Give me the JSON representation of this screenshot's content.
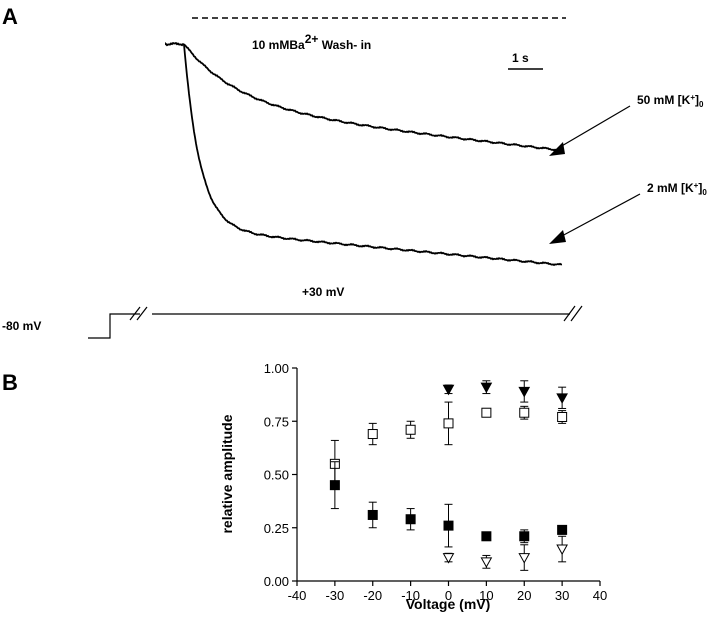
{
  "panel_a": {
    "letter": "A",
    "annotation": "10 mMBa",
    "annotation_sup": "2+",
    "annotation_rest": " Wash- in",
    "scale_bar_label": "1 s",
    "trace_50_label": "50 mM [K",
    "trace_50_sup": "+",
    "trace_50_end": "]",
    "trace_50_sub": "0",
    "trace_2_label": "2 mM [K",
    "trace_2_sup": "+",
    "trace_2_end": "]",
    "trace_2_sub": "0",
    "protocol_hold": "-80 mV",
    "protocol_step": "+30 mV"
  },
  "panel_b": {
    "letter": "B"
  },
  "chart_data": {
    "type": "scatter",
    "title": "",
    "xlabel": "Voltage (mV)",
    "ylabel": "relative amplitude",
    "xlim": [
      -40,
      40
    ],
    "ylim": [
      0,
      1
    ],
    "xticks": [
      -40,
      -30,
      -20,
      -10,
      0,
      10,
      20,
      30,
      40
    ],
    "yticks": [
      "0.00",
      "0.25",
      "0.50",
      "0.75",
      "1.00"
    ],
    "series": [
      {
        "name": "open squares",
        "marker": "square-open",
        "x": [
          -30,
          -20,
          -10,
          0,
          10,
          20,
          30
        ],
        "y": [
          0.55,
          0.69,
          0.71,
          0.74,
          0.79,
          0.79,
          0.77
        ],
        "err": [
          0.11,
          0.05,
          0.04,
          0.1,
          0.02,
          0.03,
          0.03
        ]
      },
      {
        "name": "filled squares",
        "marker": "square-filled",
        "x": [
          -30,
          -20,
          -10,
          0,
          10,
          20,
          30
        ],
        "y": [
          0.45,
          0.31,
          0.29,
          0.26,
          0.21,
          0.21,
          0.24
        ],
        "err": [
          0.11,
          0.06,
          0.05,
          0.1,
          0.02,
          0.03,
          0.02
        ]
      },
      {
        "name": "filled triangles",
        "marker": "triangle-filled",
        "x": [
          0,
          10,
          20,
          30
        ],
        "y": [
          0.9,
          0.91,
          0.89,
          0.86
        ],
        "err": [
          0.02,
          0.03,
          0.05,
          0.05
        ]
      },
      {
        "name": "open triangles",
        "marker": "triangle-open",
        "x": [
          0,
          10,
          20,
          30
        ],
        "y": [
          0.11,
          0.09,
          0.11,
          0.15
        ],
        "err": [
          0.02,
          0.03,
          0.06,
          0.06
        ]
      }
    ]
  }
}
